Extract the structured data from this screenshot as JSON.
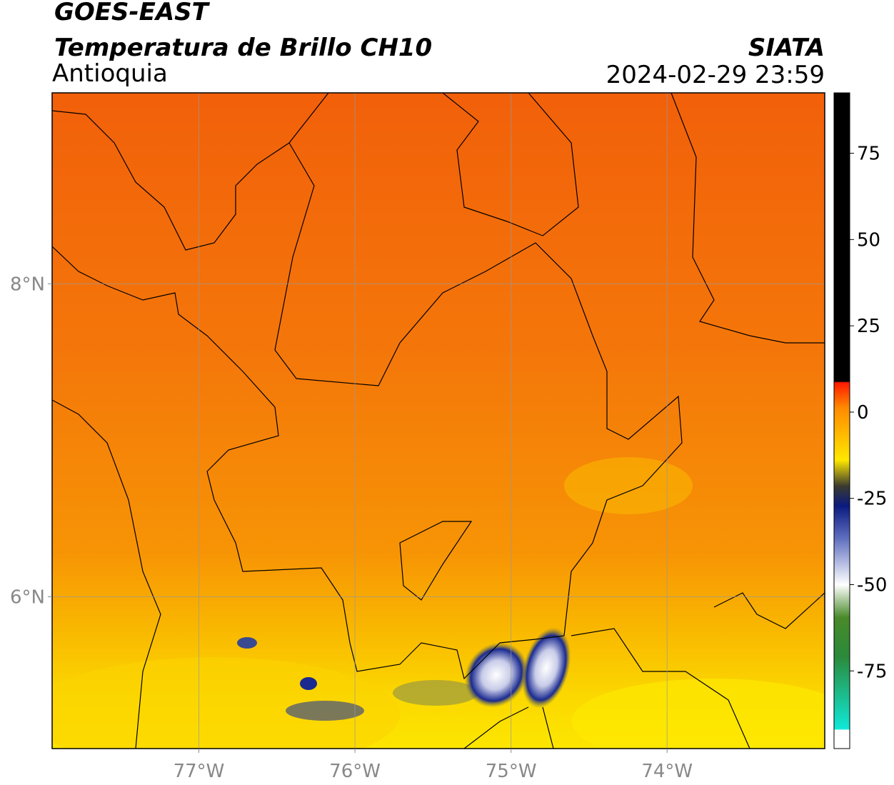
{
  "header": {
    "title": "GOES-EAST",
    "subtitle": "Temperatura de Brillo CH10",
    "region": "Antioquia",
    "source": "SIATA",
    "timestamp": "2024-02-29 23:59"
  },
  "map": {
    "xlim": [
      -77.94,
      -72.99
    ],
    "ylim": [
      5.03,
      9.22
    ],
    "xticks": [
      {
        "value": -77,
        "label": "77°W"
      },
      {
        "value": -76,
        "label": "76°W"
      },
      {
        "value": -75,
        "label": "75°W"
      },
      {
        "value": -74,
        "label": "74°W"
      }
    ],
    "yticks": [
      {
        "value": 8,
        "label": "8°N"
      },
      {
        "value": 6,
        "label": "6°N"
      }
    ],
    "grid": true
  },
  "colorbar": {
    "lim": [
      -97.5,
      92.5
    ],
    "ticks": [
      75,
      50,
      25,
      0,
      -25,
      -50,
      -75
    ]
  }
}
